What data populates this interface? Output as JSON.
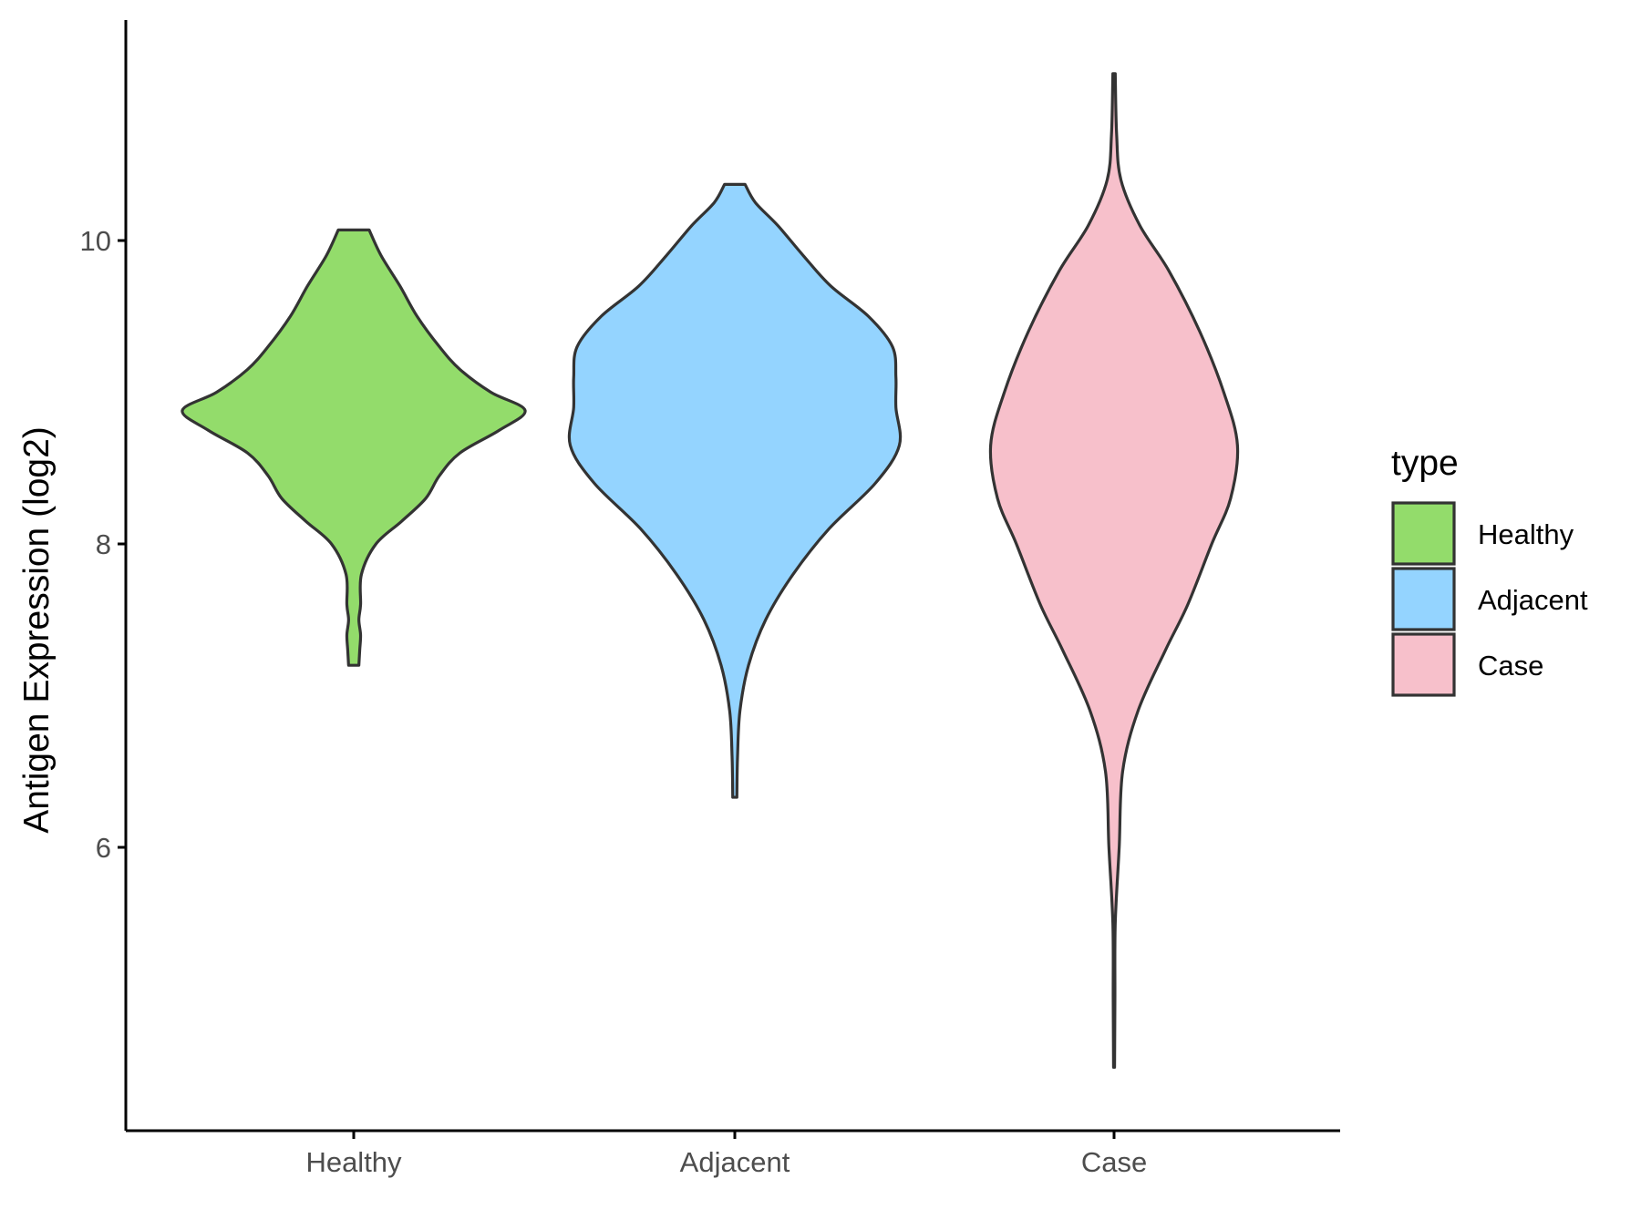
{
  "chart_data": {
    "type": "violin",
    "xlabel": "",
    "ylabel": "Antigen Expression (log2)",
    "categories": [
      "Healthy",
      "Adjacent",
      "Case"
    ],
    "ylim": [
      4.2,
      11.5
    ],
    "yticks": [
      6,
      8,
      10
    ],
    "grid": false,
    "legend": {
      "title": "type",
      "position": "right",
      "entries": [
        "Healthy",
        "Adjacent",
        "Case"
      ]
    },
    "series": [
      {
        "name": "Healthy",
        "color": "#93DC6B",
        "min": 7.2,
        "max": 10.07,
        "density": [
          [
            7.2,
            0.03
          ],
          [
            7.3,
            0.035
          ],
          [
            7.4,
            0.04
          ],
          [
            7.5,
            0.03
          ],
          [
            7.6,
            0.04
          ],
          [
            7.8,
            0.045
          ],
          [
            8.0,
            0.13
          ],
          [
            8.15,
            0.28
          ],
          [
            8.3,
            0.42
          ],
          [
            8.45,
            0.5
          ],
          [
            8.6,
            0.62
          ],
          [
            8.75,
            0.85
          ],
          [
            8.88,
            1.0
          ],
          [
            9.0,
            0.8
          ],
          [
            9.15,
            0.62
          ],
          [
            9.3,
            0.5
          ],
          [
            9.5,
            0.37
          ],
          [
            9.7,
            0.27
          ],
          [
            9.9,
            0.16
          ],
          [
            10.07,
            0.09
          ]
        ]
      },
      {
        "name": "Adjacent",
        "color": "#94D4FF",
        "min": 6.33,
        "max": 10.37,
        "density": [
          [
            6.33,
            0.012
          ],
          [
            6.6,
            0.016
          ],
          [
            6.9,
            0.03
          ],
          [
            7.2,
            0.08
          ],
          [
            7.5,
            0.18
          ],
          [
            7.8,
            0.34
          ],
          [
            8.1,
            0.55
          ],
          [
            8.4,
            0.82
          ],
          [
            8.65,
            0.96
          ],
          [
            8.9,
            0.94
          ],
          [
            9.1,
            0.94
          ],
          [
            9.3,
            0.92
          ],
          [
            9.5,
            0.78
          ],
          [
            9.7,
            0.56
          ],
          [
            9.9,
            0.4
          ],
          [
            10.1,
            0.25
          ],
          [
            10.25,
            0.12
          ],
          [
            10.37,
            0.06
          ]
        ]
      },
      {
        "name": "Case",
        "color": "#F7C0CB",
        "min": 4.55,
        "max": 11.1,
        "density": [
          [
            4.55,
            0.003
          ],
          [
            5.0,
            0.005
          ],
          [
            5.5,
            0.007
          ],
          [
            6.0,
            0.03
          ],
          [
            6.5,
            0.05
          ],
          [
            6.9,
            0.14
          ],
          [
            7.3,
            0.3
          ],
          [
            7.6,
            0.43
          ],
          [
            8.0,
            0.57
          ],
          [
            8.3,
            0.68
          ],
          [
            8.65,
            0.72
          ],
          [
            9.0,
            0.64
          ],
          [
            9.4,
            0.5
          ],
          [
            9.8,
            0.32
          ],
          [
            10.1,
            0.15
          ],
          [
            10.4,
            0.04
          ],
          [
            10.7,
            0.015
          ],
          [
            11.1,
            0.007
          ]
        ]
      }
    ]
  }
}
